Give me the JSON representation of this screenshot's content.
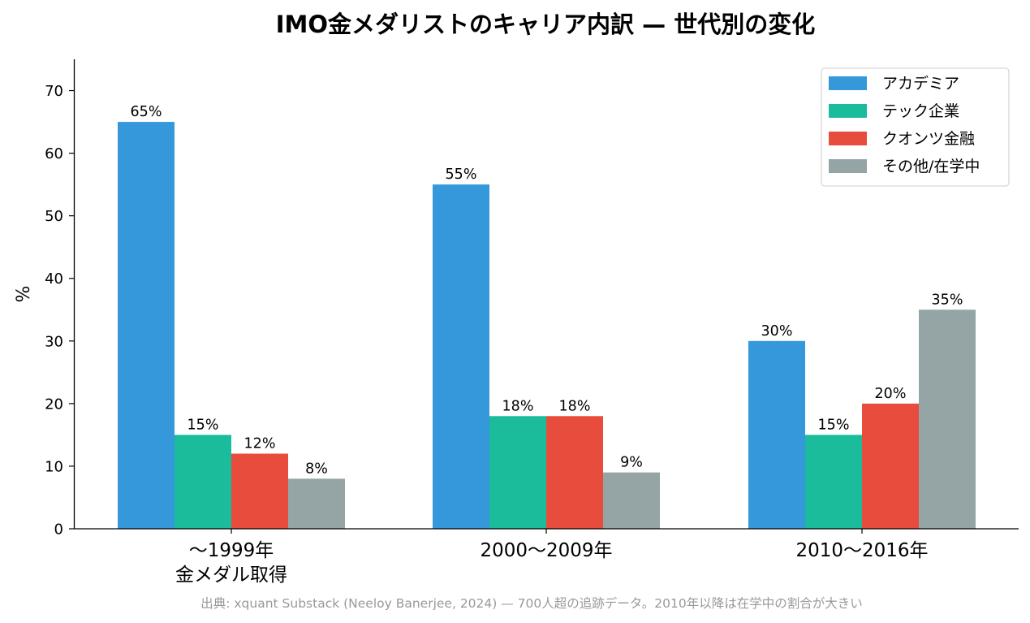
{
  "chart_data": {
    "type": "bar",
    "title": "IMO金メダリストのキャリア内訳 — 世代別の変化",
    "ylabel": "%",
    "xlabel": "",
    "ylim": [
      0,
      75
    ],
    "yticks": [
      0,
      10,
      20,
      30,
      40,
      50,
      60,
      70
    ],
    "grid": false,
    "legend_position": "top-right",
    "categories": [
      [
        "〜1999年",
        "金メダル取得"
      ],
      [
        "2000〜2009年"
      ],
      [
        "2010〜2016年"
      ]
    ],
    "series": [
      {
        "name": "アカデミア",
        "color": "#3498db",
        "values": [
          65,
          55,
          30
        ],
        "labels": [
          "65%",
          "55%",
          "30%"
        ]
      },
      {
        "name": "テック企業",
        "color": "#1abc9c",
        "values": [
          15,
          18,
          15
        ],
        "labels": [
          "15%",
          "18%",
          "15%"
        ]
      },
      {
        "name": "クオンツ金融",
        "color": "#e74c3c",
        "values": [
          12,
          18,
          20
        ],
        "labels": [
          "12%",
          "18%",
          "20%"
        ]
      },
      {
        "name": "その他/在学中",
        "color": "#95a5a6",
        "values": [
          8,
          9,
          35
        ],
        "labels": [
          "8%",
          "9%",
          "35%"
        ]
      }
    ],
    "source_note": "出典: xquant Substack (Neeloy Banerjee, 2024) — 700人超の追跡データ。2010年以降は在学中の割合が大きい"
  }
}
